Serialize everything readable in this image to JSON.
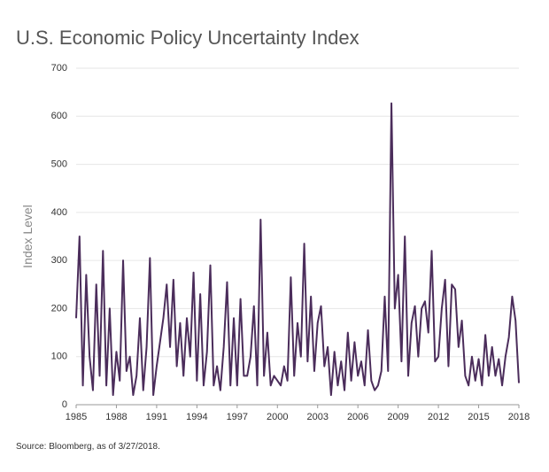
{
  "chart_data": {
    "type": "line",
    "title": "U.S. Economic Policy Uncertainty Index",
    "y_label": "Index Level",
    "source": "Source: Bloomberg, as of 3/27/2018.",
    "x": [
      1985,
      1985.25,
      1985.5,
      1985.75,
      1986,
      1986.25,
      1986.5,
      1986.75,
      1987,
      1987.25,
      1987.5,
      1987.75,
      1988,
      1988.25,
      1988.5,
      1988.75,
      1989,
      1989.25,
      1989.5,
      1989.75,
      1990,
      1990.25,
      1990.5,
      1990.75,
      1991,
      1991.25,
      1991.5,
      1991.75,
      1992,
      1992.25,
      1992.5,
      1992.75,
      1993,
      1993.25,
      1993.5,
      1993.75,
      1994,
      1994.25,
      1994.5,
      1994.75,
      1995,
      1995.25,
      1995.5,
      1995.75,
      1996,
      1996.25,
      1996.5,
      1996.75,
      1997,
      1997.25,
      1997.5,
      1997.75,
      1998,
      1998.25,
      1998.5,
      1998.75,
      1999,
      1999.25,
      1999.5,
      1999.75,
      2000,
      2000.25,
      2000.5,
      2000.75,
      2001,
      2001.25,
      2001.5,
      2001.75,
      2002,
      2002.25,
      2002.5,
      2002.75,
      2003,
      2003.25,
      2003.5,
      2003.75,
      2004,
      2004.25,
      2004.5,
      2004.75,
      2005,
      2005.25,
      2005.5,
      2005.75,
      2006,
      2006.25,
      2006.5,
      2006.75,
      2007,
      2007.25,
      2007.5,
      2007.75,
      2008,
      2008.25,
      2008.5,
      2008.75,
      2009,
      2009.25,
      2009.5,
      2009.75,
      2010,
      2010.25,
      2010.5,
      2010.75,
      2011,
      2011.25,
      2011.5,
      2011.75,
      2012,
      2012.25,
      2012.5,
      2012.75,
      2013,
      2013.25,
      2013.5,
      2013.75,
      2014,
      2014.25,
      2014.5,
      2014.75,
      2015,
      2015.25,
      2015.5,
      2015.75,
      2016,
      2016.25,
      2016.5,
      2016.75,
      2017,
      2017.25,
      2017.5,
      2017.75,
      2018
    ],
    "series": [
      {
        "color": "#4b2d5b",
        "values": [
          180,
          350,
          40,
          270,
          100,
          30,
          250,
          60,
          320,
          40,
          200,
          20,
          110,
          50,
          300,
          70,
          100,
          20,
          60,
          180,
          30,
          120,
          305,
          20,
          80,
          130,
          180,
          250,
          120,
          260,
          80,
          170,
          60,
          180,
          100,
          275,
          50,
          230,
          40,
          110,
          290,
          40,
          80,
          30,
          120,
          255,
          40,
          180,
          40,
          220,
          60,
          60,
          100,
          205,
          40,
          385,
          60,
          150,
          40,
          60,
          50,
          40,
          80,
          50,
          265,
          60,
          170,
          100,
          335,
          90,
          225,
          70,
          170,
          205,
          80,
          120,
          20,
          110,
          40,
          90,
          30,
          150,
          50,
          130,
          60,
          90,
          40,
          155,
          50,
          30,
          40,
          70,
          225,
          70,
          627,
          200,
          270,
          90,
          350,
          60,
          170,
          205,
          100,
          200,
          215,
          150,
          320,
          90,
          100,
          200,
          260,
          80,
          250,
          240,
          120,
          175,
          60,
          40,
          100,
          50,
          95,
          40,
          145,
          60,
          120,
          60,
          95,
          40,
          100,
          140,
          225,
          175,
          45
        ]
      }
    ],
    "xlim": [
      1985,
      2018
    ],
    "xticks": [
      1985,
      1988,
      1991,
      1994,
      1997,
      2000,
      2003,
      2006,
      2009,
      2012,
      2015,
      2018
    ],
    "ylim": [
      0,
      700
    ],
    "yticks": [
      0,
      100,
      200,
      300,
      400,
      500,
      600,
      700
    ],
    "grid": true
  }
}
